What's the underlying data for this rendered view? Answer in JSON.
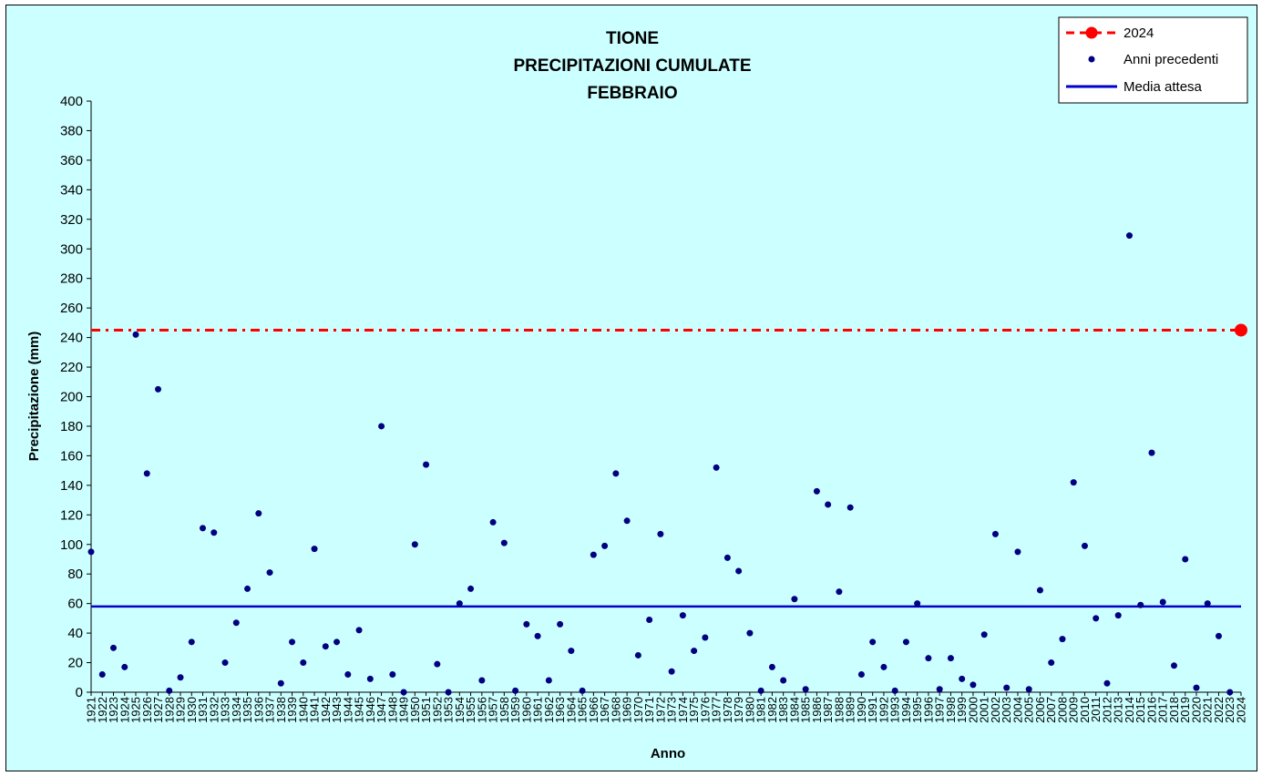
{
  "chart_data": {
    "type": "scatter",
    "title_lines": [
      "TIONE",
      "PRECIPITAZIONI CUMULATE",
      "FEBBRAIO"
    ],
    "xlabel": "Anno",
    "ylabel": "Precipitazione (mm)",
    "ylim": [
      0,
      400
    ],
    "ytick_step": 20,
    "grid": false,
    "legend_position": "top-right",
    "background_color": "#ccffff",
    "series": [
      {
        "name": "Anni precedenti",
        "color": "#000080",
        "marker": "dot",
        "points": [
          {
            "x": "1921",
            "y": 95
          },
          {
            "x": "1922",
            "y": 12
          },
          {
            "x": "1923",
            "y": 30
          },
          {
            "x": "1924",
            "y": 17
          },
          {
            "x": "1925",
            "y": 242
          },
          {
            "x": "1926",
            "y": 148
          },
          {
            "x": "1927",
            "y": 205
          },
          {
            "x": "1928",
            "y": 1
          },
          {
            "x": "1929",
            "y": 10
          },
          {
            "x": "1930",
            "y": 34
          },
          {
            "x": "1931",
            "y": 111
          },
          {
            "x": "1932",
            "y": 108
          },
          {
            "x": "1933",
            "y": 20
          },
          {
            "x": "1934",
            "y": 47
          },
          {
            "x": "1935",
            "y": 70
          },
          {
            "x": "1936",
            "y": 121
          },
          {
            "x": "1937",
            "y": 81
          },
          {
            "x": "1938",
            "y": 6
          },
          {
            "x": "1939",
            "y": 34
          },
          {
            "x": "1940",
            "y": 20
          },
          {
            "x": "1941",
            "y": 97
          },
          {
            "x": "1942",
            "y": 31
          },
          {
            "x": "1943",
            "y": 34
          },
          {
            "x": "1944",
            "y": 12
          },
          {
            "x": "1945",
            "y": 42
          },
          {
            "x": "1946",
            "y": 9
          },
          {
            "x": "1947",
            "y": 180
          },
          {
            "x": "1948",
            "y": 12
          },
          {
            "x": "1949",
            "y": 0
          },
          {
            "x": "1950",
            "y": 100
          },
          {
            "x": "1951",
            "y": 154
          },
          {
            "x": "1952",
            "y": 19
          },
          {
            "x": "1953",
            "y": 0
          },
          {
            "x": "1954",
            "y": 60
          },
          {
            "x": "1955",
            "y": 70
          },
          {
            "x": "1956",
            "y": 8
          },
          {
            "x": "1957",
            "y": 115
          },
          {
            "x": "1958",
            "y": 101
          },
          {
            "x": "1959",
            "y": 1
          },
          {
            "x": "1960",
            "y": 46
          },
          {
            "x": "1961",
            "y": 38
          },
          {
            "x": "1962",
            "y": 8
          },
          {
            "x": "1963",
            "y": 46
          },
          {
            "x": "1964",
            "y": 28
          },
          {
            "x": "1965",
            "y": 1
          },
          {
            "x": "1966",
            "y": 93
          },
          {
            "x": "1967",
            "y": 99
          },
          {
            "x": "1968",
            "y": 148
          },
          {
            "x": "1969",
            "y": 116
          },
          {
            "x": "1970",
            "y": 25
          },
          {
            "x": "1971",
            "y": 49
          },
          {
            "x": "1972",
            "y": 107
          },
          {
            "x": "1973",
            "y": 14
          },
          {
            "x": "1974",
            "y": 52
          },
          {
            "x": "1975",
            "y": 28
          },
          {
            "x": "1976",
            "y": 37
          },
          {
            "x": "1977",
            "y": 152
          },
          {
            "x": "1978",
            "y": 91
          },
          {
            "x": "1979",
            "y": 82
          },
          {
            "x": "1980",
            "y": 40
          },
          {
            "x": "1981",
            "y": 1
          },
          {
            "x": "1982",
            "y": 17
          },
          {
            "x": "1983",
            "y": 8
          },
          {
            "x": "1984",
            "y": 63
          },
          {
            "x": "1985",
            "y": 2
          },
          {
            "x": "1986",
            "y": 136
          },
          {
            "x": "1987",
            "y": 127
          },
          {
            "x": "1988",
            "y": 68
          },
          {
            "x": "1989",
            "y": 125
          },
          {
            "x": "1990",
            "y": 12
          },
          {
            "x": "1991",
            "y": 34
          },
          {
            "x": "1992",
            "y": 17
          },
          {
            "x": "1993",
            "y": 1
          },
          {
            "x": "1994",
            "y": 34
          },
          {
            "x": "1995",
            "y": 60
          },
          {
            "x": "1996",
            "y": 23
          },
          {
            "x": "1997",
            "y": 2
          },
          {
            "x": "1998",
            "y": 23
          },
          {
            "x": "1999",
            "y": 9
          },
          {
            "x": "2000",
            "y": 5
          },
          {
            "x": "2001",
            "y": 39
          },
          {
            "x": "2002",
            "y": 107
          },
          {
            "x": "2003",
            "y": 3
          },
          {
            "x": "2004",
            "y": 95
          },
          {
            "x": "2005",
            "y": 2
          },
          {
            "x": "2006",
            "y": 69
          },
          {
            "x": "2007",
            "y": 20
          },
          {
            "x": "2008",
            "y": 36
          },
          {
            "x": "2009",
            "y": 142
          },
          {
            "x": "2010",
            "y": 99
          },
          {
            "x": "2011",
            "y": 50
          },
          {
            "x": "2012",
            "y": 6
          },
          {
            "x": "2013",
            "y": 52
          },
          {
            "x": "2014",
            "y": 309
          },
          {
            "x": "2015",
            "y": 59
          },
          {
            "x": "2016",
            "y": 162
          },
          {
            "x": "2017",
            "y": 61
          },
          {
            "x": "2018",
            "y": 18
          },
          {
            "x": "2019",
            "y": 90
          },
          {
            "x": "2020",
            "y": 3
          },
          {
            "x": "2021",
            "y": 60
          },
          {
            "x": "2022",
            "y": 38
          },
          {
            "x": "2023",
            "y": 0
          }
        ]
      },
      {
        "name": "2024",
        "color": "#ff0000",
        "marker": "large-dot",
        "line_style": "dash-dot",
        "points": [
          {
            "x": "2024",
            "y": 245
          }
        ]
      },
      {
        "name": "Media attesa",
        "color": "#0000cc",
        "line_style": "solid",
        "value": 58
      }
    ],
    "legend_order": [
      "2024",
      "Anni precedenti",
      "Media attesa"
    ]
  }
}
